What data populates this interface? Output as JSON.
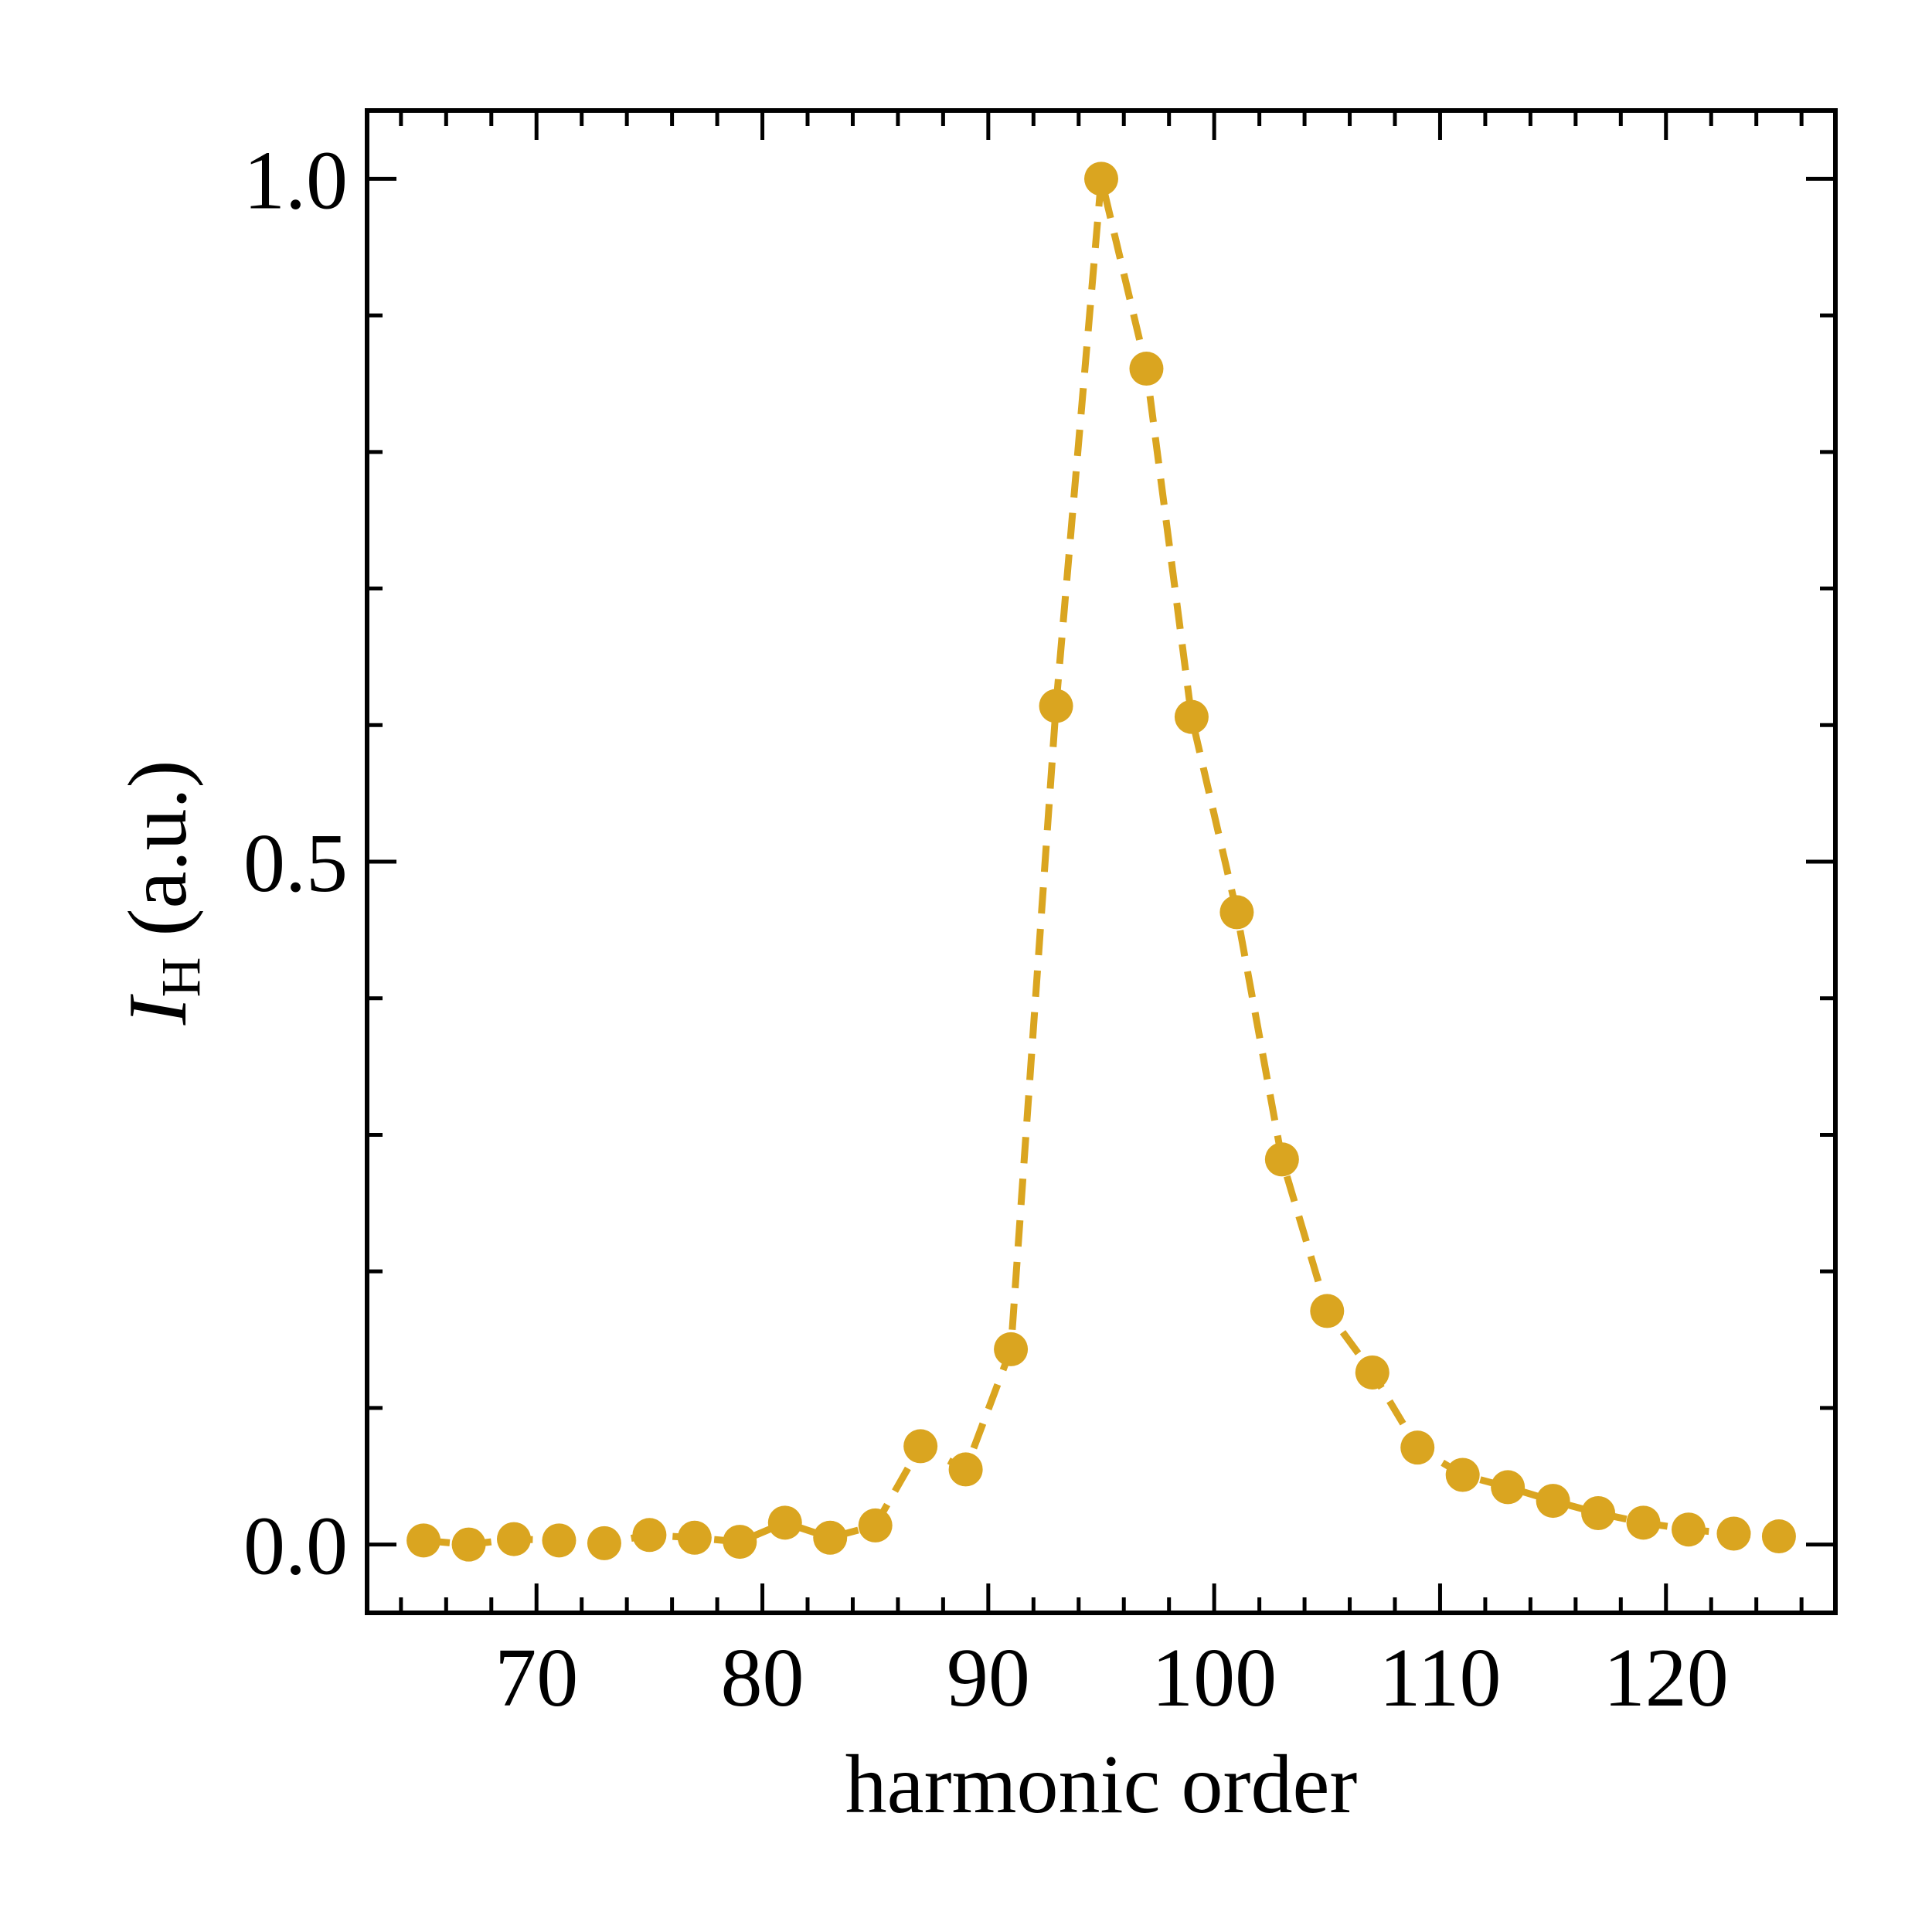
{
  "chart_data": {
    "type": "line",
    "title": "",
    "xlabel": "harmonic order",
    "ylabel_main": "I",
    "ylabel_sub": "H",
    "ylabel_rest": " (a.u.)",
    "xlim": [
      62.5,
      127.5
    ],
    "ylim": [
      -0.05,
      1.05
    ],
    "xticks": [
      70,
      80,
      90,
      100,
      110,
      120
    ],
    "xtick_labels": [
      "70",
      "80",
      "90",
      "100",
      "110",
      "120"
    ],
    "yticks": [
      0.0,
      0.5,
      1.0
    ],
    "ytick_labels": [
      "0.0",
      "0.5",
      "1.0"
    ],
    "grid": false,
    "color": "#DAA520",
    "line_style": "dashed",
    "marker": "circle",
    "series": [
      {
        "x": [
          65,
          67,
          69,
          71,
          73,
          75,
          77,
          79,
          81,
          83,
          85,
          87,
          89,
          91,
          93,
          95,
          97,
          99,
          101,
          103,
          105,
          107,
          109,
          111,
          113,
          115,
          117,
          119,
          121,
          123,
          125
        ],
        "y": [
          0.003,
          0.0,
          0.004,
          0.003,
          0.001,
          0.007,
          0.005,
          0.002,
          0.016,
          0.005,
          0.014,
          0.072,
          0.055,
          0.143,
          0.614,
          1.0,
          0.861,
          0.606,
          0.463,
          0.282,
          0.171,
          0.126,
          0.071,
          0.051,
          0.042,
          0.032,
          0.023,
          0.016,
          0.011,
          0.008,
          0.006
        ]
      }
    ]
  }
}
